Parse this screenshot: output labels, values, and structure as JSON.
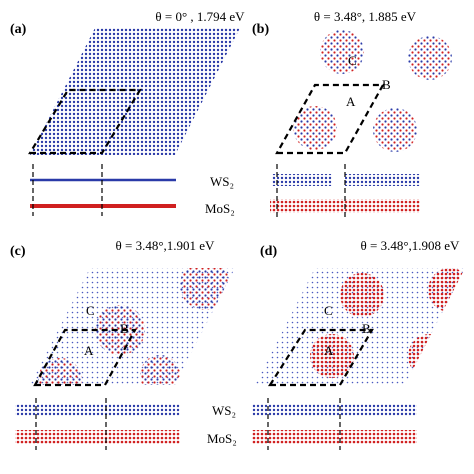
{
  "panels": [
    {
      "label": "(a)",
      "title": "θ = 0° , 1.794 eV"
    },
    {
      "label": "(b)",
      "title": "θ = 3.48°, 1.885 eV",
      "sites": [
        "A",
        "B",
        "C"
      ]
    },
    {
      "label": "(c)",
      "title": "θ = 3.48°,1.901 eV",
      "sites": [
        "A",
        "B",
        "C"
      ]
    },
    {
      "label": "(d)",
      "title": "θ = 3.48°,1.908 eV",
      "sites": [
        "A",
        "B",
        "C"
      ]
    }
  ],
  "layer_labels": {
    "top_row": [
      "WS₂",
      "MoS₂"
    ],
    "bottom_row": [
      "WS₂",
      "MoS₂"
    ]
  }
}
